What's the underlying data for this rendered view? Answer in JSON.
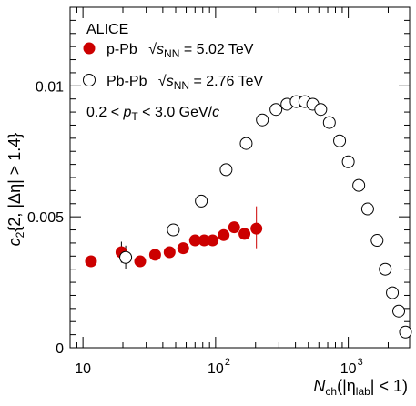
{
  "chart_data": {
    "type": "scatter",
    "xscale": "log",
    "xlim": [
      8,
      2900
    ],
    "ylim": [
      0,
      0.013
    ],
    "xlabel": "N_ch(|η_lab| < 1)",
    "ylabel": "c_2{2, |Δη| > 1.4}",
    "x_ticks": [
      {
        "value": 10,
        "base": "10",
        "exponent": ""
      },
      {
        "value": 100,
        "base": "10",
        "exponent": "2"
      },
      {
        "value": 1000,
        "base": "10",
        "exponent": "3"
      }
    ],
    "y_ticks": [
      {
        "value": 0,
        "label": "0"
      },
      {
        "value": 0.005,
        "label": "0.005"
      },
      {
        "value": 0.01,
        "label": "0.01"
      }
    ],
    "legend": {
      "experiment": "ALICE",
      "cut": "0.2 < p_T < 3.0 GeV/c"
    },
    "series": [
      {
        "name": "p-Pb  √s_NN = 5.02 TeV",
        "marker": "filled-circle",
        "color": "#cc0000",
        "points": [
          {
            "x": 11.5,
            "y": 0.0033
          },
          {
            "x": 19.5,
            "y": 0.00365
          },
          {
            "x": 27,
            "y": 0.0033
          },
          {
            "x": 35,
            "y": 0.00355
          },
          {
            "x": 45,
            "y": 0.00365
          },
          {
            "x": 57,
            "y": 0.0038
          },
          {
            "x": 70,
            "y": 0.0041
          },
          {
            "x": 82,
            "y": 0.0041
          },
          {
            "x": 95,
            "y": 0.0041
          },
          {
            "x": 115,
            "y": 0.0043
          },
          {
            "x": 138,
            "y": 0.0046
          },
          {
            "x": 165,
            "y": 0.00435
          },
          {
            "x": 203,
            "y": 0.00455
          }
        ]
      },
      {
        "name": "Pb-Pb  √s_NN = 2.76 TeV",
        "marker": "open-circle",
        "color": "#000000",
        "points": [
          {
            "x": 21,
            "y": 0.00345
          },
          {
            "x": 48,
            "y": 0.0045
          },
          {
            "x": 78,
            "y": 0.0056
          },
          {
            "x": 120,
            "y": 0.0068
          },
          {
            "x": 170,
            "y": 0.0078
          },
          {
            "x": 225,
            "y": 0.0087
          },
          {
            "x": 285,
            "y": 0.0091
          },
          {
            "x": 345,
            "y": 0.0093
          },
          {
            "x": 405,
            "y": 0.0094
          },
          {
            "x": 470,
            "y": 0.0094
          },
          {
            "x": 540,
            "y": 0.0093
          },
          {
            "x": 620,
            "y": 0.0091
          },
          {
            "x": 720,
            "y": 0.0086
          },
          {
            "x": 860,
            "y": 0.0079
          },
          {
            "x": 1000,
            "y": 0.0071
          },
          {
            "x": 1200,
            "y": 0.0062
          },
          {
            "x": 1400,
            "y": 0.0053
          },
          {
            "x": 1650,
            "y": 0.0041
          },
          {
            "x": 1900,
            "y": 0.003
          },
          {
            "x": 2150,
            "y": 0.0021
          },
          {
            "x": 2400,
            "y": 0.0014
          },
          {
            "x": 2700,
            "y": 0.0006
          }
        ]
      }
    ],
    "error_bars": [
      {
        "x": 19.5,
        "y_low": 0.00325,
        "y_high": 0.00405
      },
      {
        "x": 21,
        "y_low": 0.003,
        "y_high": 0.0039
      },
      {
        "x": 203,
        "y_low": 0.0038,
        "y_high": 0.0054
      }
    ]
  }
}
